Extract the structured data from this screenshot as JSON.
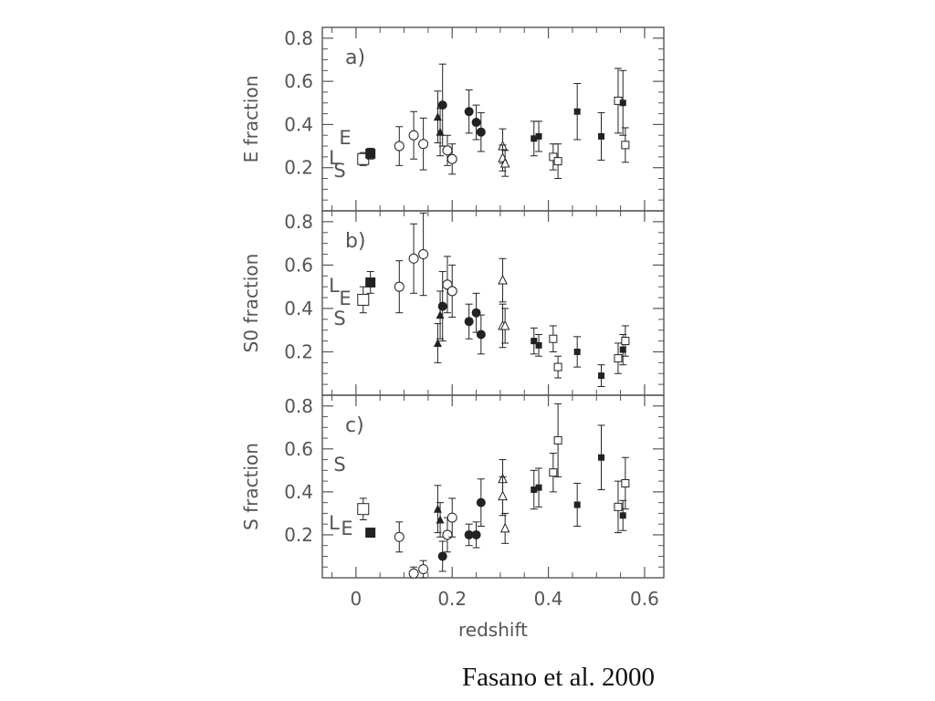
{
  "caption": "Fasano et al. 2000",
  "chart_data": {
    "type": "scatter",
    "x": {
      "label": "redshift",
      "lim": [
        -0.07,
        0.64
      ],
      "ticks": [
        0,
        0.2,
        0.4,
        0.6
      ],
      "tick_labels": [
        "0",
        "0.2",
        "0.4",
        "0.6"
      ]
    },
    "panels": [
      {
        "id": "a",
        "letter": "a)",
        "ylabel": "E fraction",
        "ylim": [
          0.0,
          0.85
        ],
        "yticks": [
          0.2,
          0.4,
          0.6,
          0.8
        ],
        "ytick_labels": [
          "0.2",
          "0.4",
          "0.6",
          "0.8"
        ],
        "type_markers": [
          "E",
          "L",
          "S"
        ],
        "points": [
          {
            "x": 0.015,
            "y": 0.24,
            "err": 0.03,
            "m": "open-square-lg"
          },
          {
            "x": 0.03,
            "y": 0.265,
            "err": 0.025,
            "m": "filled-square-lg"
          },
          {
            "x": 0.09,
            "y": 0.3,
            "err": 0.09,
            "m": "open-circle"
          },
          {
            "x": 0.12,
            "y": 0.35,
            "err": 0.11,
            "m": "open-circle"
          },
          {
            "x": 0.14,
            "y": 0.31,
            "err": 0.12,
            "m": "open-circle"
          },
          {
            "x": 0.17,
            "y": 0.435,
            "err": 0.12,
            "m": "filled-triangle"
          },
          {
            "x": 0.175,
            "y": 0.365,
            "err": 0.11,
            "m": "filled-triangle"
          },
          {
            "x": 0.18,
            "y": 0.49,
            "err": 0.19,
            "m": "filled-circle"
          },
          {
            "x": 0.19,
            "y": 0.28,
            "err": 0.07,
            "m": "open-circle"
          },
          {
            "x": 0.2,
            "y": 0.24,
            "err": 0.07,
            "m": "open-circle"
          },
          {
            "x": 0.235,
            "y": 0.46,
            "err": 0.1,
            "m": "filled-circle"
          },
          {
            "x": 0.25,
            "y": 0.41,
            "err": 0.08,
            "m": "filled-circle"
          },
          {
            "x": 0.26,
            "y": 0.365,
            "err": 0.09,
            "m": "filled-circle"
          },
          {
            "x": 0.305,
            "y": 0.3,
            "err": 0.08,
            "m": "open-triangle"
          },
          {
            "x": 0.305,
            "y": 0.245,
            "err": 0.06,
            "m": "open-triangle"
          },
          {
            "x": 0.31,
            "y": 0.22,
            "err": 0.06,
            "m": "open-triangle"
          },
          {
            "x": 0.37,
            "y": 0.335,
            "err": 0.08,
            "m": "filled-square"
          },
          {
            "x": 0.38,
            "y": 0.345,
            "err": 0.07,
            "m": "filled-square"
          },
          {
            "x": 0.41,
            "y": 0.25,
            "err": 0.06,
            "m": "open-square"
          },
          {
            "x": 0.42,
            "y": 0.23,
            "err": 0.08,
            "m": "open-square"
          },
          {
            "x": 0.46,
            "y": 0.46,
            "err": 0.13,
            "m": "filled-square"
          },
          {
            "x": 0.51,
            "y": 0.345,
            "err": 0.11,
            "m": "filled-square"
          },
          {
            "x": 0.545,
            "y": 0.51,
            "err": 0.15,
            "m": "open-square"
          },
          {
            "x": 0.555,
            "y": 0.5,
            "err": 0.15,
            "m": "filled-square"
          },
          {
            "x": 0.56,
            "y": 0.305,
            "err": 0.08,
            "m": "open-square"
          }
        ]
      },
      {
        "id": "b",
        "letter": "b)",
        "ylabel": "S0 fraction",
        "ylim": [
          0.0,
          0.85
        ],
        "yticks": [
          0.2,
          0.4,
          0.6,
          0.8
        ],
        "ytick_labels": [
          "0.2",
          "0.4",
          "0.6",
          "0.8"
        ],
        "type_markers": [
          "L",
          "E",
          "S"
        ],
        "points": [
          {
            "x": 0.015,
            "y": 0.44,
            "err": 0.06,
            "m": "open-square-lg"
          },
          {
            "x": 0.03,
            "y": 0.52,
            "err": 0.05,
            "m": "filled-square-lg"
          },
          {
            "x": 0.09,
            "y": 0.5,
            "err": 0.12,
            "m": "open-circle"
          },
          {
            "x": 0.12,
            "y": 0.63,
            "err": 0.16,
            "m": "open-circle"
          },
          {
            "x": 0.14,
            "y": 0.65,
            "err": 0.19,
            "m": "open-circle"
          },
          {
            "x": 0.17,
            "y": 0.24,
            "err": 0.09,
            "m": "filled-triangle"
          },
          {
            "x": 0.175,
            "y": 0.37,
            "err": 0.11,
            "m": "filled-triangle"
          },
          {
            "x": 0.18,
            "y": 0.41,
            "err": 0.16,
            "m": "filled-circle"
          },
          {
            "x": 0.19,
            "y": 0.51,
            "err": 0.13,
            "m": "open-circle"
          },
          {
            "x": 0.2,
            "y": 0.48,
            "err": 0.12,
            "m": "open-circle"
          },
          {
            "x": 0.235,
            "y": 0.34,
            "err": 0.08,
            "m": "filled-circle"
          },
          {
            "x": 0.25,
            "y": 0.38,
            "err": 0.09,
            "m": "filled-circle"
          },
          {
            "x": 0.26,
            "y": 0.28,
            "err": 0.09,
            "m": "filled-circle"
          },
          {
            "x": 0.305,
            "y": 0.53,
            "err": 0.1,
            "m": "open-triangle"
          },
          {
            "x": 0.305,
            "y": 0.32,
            "err": 0.1,
            "m": "open-triangle"
          },
          {
            "x": 0.31,
            "y": 0.32,
            "err": 0.08,
            "m": "open-triangle"
          },
          {
            "x": 0.37,
            "y": 0.25,
            "err": 0.06,
            "m": "filled-square"
          },
          {
            "x": 0.38,
            "y": 0.23,
            "err": 0.05,
            "m": "filled-square"
          },
          {
            "x": 0.41,
            "y": 0.26,
            "err": 0.06,
            "m": "open-square"
          },
          {
            "x": 0.42,
            "y": 0.13,
            "err": 0.05,
            "m": "open-square"
          },
          {
            "x": 0.46,
            "y": 0.2,
            "err": 0.07,
            "m": "filled-square"
          },
          {
            "x": 0.51,
            "y": 0.09,
            "err": 0.05,
            "m": "filled-square"
          },
          {
            "x": 0.545,
            "y": 0.17,
            "err": 0.07,
            "m": "open-square"
          },
          {
            "x": 0.555,
            "y": 0.21,
            "err": 0.07,
            "m": "filled-square"
          },
          {
            "x": 0.56,
            "y": 0.25,
            "err": 0.07,
            "m": "open-square"
          }
        ]
      },
      {
        "id": "c",
        "letter": "c)",
        "ylabel": "S fraction",
        "ylim": [
          0.0,
          0.85
        ],
        "yticks": [
          0.2,
          0.4,
          0.6,
          0.8
        ],
        "ytick_labels": [
          "0.2",
          "0.4",
          "0.6",
          "0.8"
        ],
        "type_markers": [
          "S",
          "L",
          "E"
        ],
        "points": [
          {
            "x": 0.015,
            "y": 0.32,
            "err": 0.05,
            "m": "open-square-lg"
          },
          {
            "x": 0.03,
            "y": 0.21,
            "err": 0.02,
            "m": "filled-square-lg"
          },
          {
            "x": 0.09,
            "y": 0.19,
            "err": 0.07,
            "m": "open-circle"
          },
          {
            "x": 0.12,
            "y": 0.02,
            "err": 0.03,
            "m": "open-circle"
          },
          {
            "x": 0.14,
            "y": 0.04,
            "err": 0.04,
            "m": "open-circle"
          },
          {
            "x": 0.17,
            "y": 0.32,
            "err": 0.11,
            "m": "filled-triangle"
          },
          {
            "x": 0.175,
            "y": 0.27,
            "err": 0.08,
            "m": "filled-triangle"
          },
          {
            "x": 0.18,
            "y": 0.1,
            "err": 0.07,
            "m": "filled-circle"
          },
          {
            "x": 0.19,
            "y": 0.2,
            "err": 0.08,
            "m": "open-circle"
          },
          {
            "x": 0.2,
            "y": 0.28,
            "err": 0.09,
            "m": "open-circle"
          },
          {
            "x": 0.235,
            "y": 0.2,
            "err": 0.05,
            "m": "filled-circle"
          },
          {
            "x": 0.25,
            "y": 0.2,
            "err": 0.06,
            "m": "filled-circle"
          },
          {
            "x": 0.26,
            "y": 0.35,
            "err": 0.11,
            "m": "filled-circle"
          },
          {
            "x": 0.305,
            "y": 0.46,
            "err": 0.09,
            "m": "open-triangle"
          },
          {
            "x": 0.305,
            "y": 0.38,
            "err": 0.09,
            "m": "open-triangle"
          },
          {
            "x": 0.31,
            "y": 0.23,
            "err": 0.07,
            "m": "open-triangle"
          },
          {
            "x": 0.37,
            "y": 0.41,
            "err": 0.09,
            "m": "filled-square"
          },
          {
            "x": 0.38,
            "y": 0.42,
            "err": 0.09,
            "m": "filled-square"
          },
          {
            "x": 0.41,
            "y": 0.49,
            "err": 0.09,
            "m": "open-square"
          },
          {
            "x": 0.42,
            "y": 0.64,
            "err": 0.17,
            "m": "open-square"
          },
          {
            "x": 0.46,
            "y": 0.34,
            "err": 0.1,
            "m": "filled-square"
          },
          {
            "x": 0.51,
            "y": 0.56,
            "err": 0.15,
            "m": "filled-square"
          },
          {
            "x": 0.545,
            "y": 0.33,
            "err": 0.12,
            "m": "open-square"
          },
          {
            "x": 0.555,
            "y": 0.29,
            "err": 0.07,
            "m": "filled-square"
          },
          {
            "x": 0.56,
            "y": 0.44,
            "err": 0.12,
            "m": "open-square"
          }
        ]
      }
    ]
  }
}
